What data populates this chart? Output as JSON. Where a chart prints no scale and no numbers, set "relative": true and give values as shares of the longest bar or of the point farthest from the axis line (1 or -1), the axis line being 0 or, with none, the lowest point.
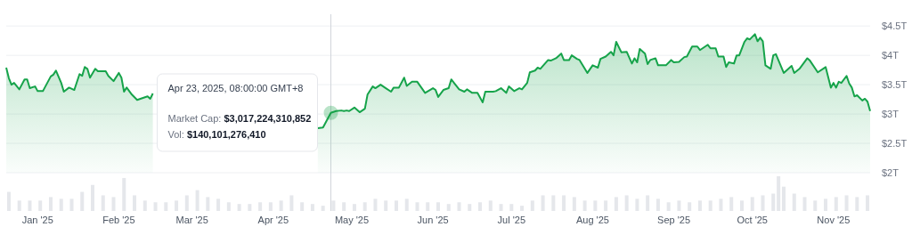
{
  "chart_data": [
    {
      "type": "area",
      "xlim": [
        "2024-12-20",
        "2025-11-15"
      ],
      "ylim": [
        2,
        4.7
      ],
      "yticks": [
        {
          "value": 2,
          "label": "$2T"
        },
        {
          "value": 2.5,
          "label": "$2.5T"
        },
        {
          "value": 3,
          "label": "$3T"
        },
        {
          "value": 3.5,
          "label": "$3.5T"
        },
        {
          "value": 4,
          "label": "$4T"
        },
        {
          "value": 4.5,
          "label": "$4.5T"
        }
      ],
      "grid": "y",
      "tick_labels": "y",
      "marker": "none",
      "line_style": "solid",
      "ref_lines": [
        {
          "axis": "x",
          "value": "2025-04-23",
          "color": "#d1d5db"
        }
      ],
      "annotations": [
        "Apr 23, 2025, 08:00:00 GMT+8",
        "Market Cap: $3,017,224,310,852",
        "Vol: $140,101,276,410"
      ],
      "series": [
        {
          "color": "#16a34a",
          "x": [
            "2024-12-20",
            "2024-12-21",
            "2024-12-22",
            "2024-12-23",
            "2024-12-25",
            "2024-12-27",
            "2024-12-28",
            "2024-12-29",
            "2024-12-31",
            "2025-01-01",
            "2025-01-03",
            "2025-01-06",
            "2025-01-07",
            "2025-01-08",
            "2025-01-10",
            "2025-01-11",
            "2025-01-13",
            "2025-01-15",
            "2025-01-17",
            "2025-01-18",
            "2025-01-19",
            "2025-01-20",
            "2025-01-21",
            "2025-01-23",
            "2025-01-24",
            "2025-01-27",
            "2025-01-28",
            "2025-01-30",
            "2025-02-01",
            "2025-02-02",
            "2025-02-03",
            "2025-02-04",
            "2025-02-06",
            "2025-02-08",
            "2025-02-10",
            "2025-02-12",
            "2025-02-13",
            "2025-02-14",
            "2025-03-15",
            "2025-04-18",
            "2025-04-20",
            "2025-04-23",
            "2025-04-25",
            "2025-04-27",
            "2025-04-28",
            "2025-04-29",
            "2025-04-30",
            "2025-05-02",
            "2025-05-04",
            "2025-05-06",
            "2025-05-07",
            "2025-05-09",
            "2025-05-10",
            "2025-05-12",
            "2025-05-14",
            "2025-05-16",
            "2025-05-17",
            "2025-05-19",
            "2025-05-21",
            "2025-05-22",
            "2025-05-24",
            "2025-05-26",
            "2025-05-29",
            "2025-06-01",
            "2025-06-02",
            "2025-06-03",
            "2025-06-05",
            "2025-06-07",
            "2025-06-08",
            "2025-06-11",
            "2025-06-13",
            "2025-06-14",
            "2025-06-16",
            "2025-06-18",
            "2025-06-20",
            "2025-06-21",
            "2025-06-24",
            "2025-06-25",
            "2025-06-27",
            "2025-06-29",
            "2025-06-30",
            "2025-07-02",
            "2025-07-04",
            "2025-07-05",
            "2025-07-07",
            "2025-07-08",
            "2025-07-10",
            "2025-07-11",
            "2025-07-12",
            "2025-07-15",
            "2025-07-16",
            "2025-07-18",
            "2025-07-20",
            "2025-07-21",
            "2025-07-23",
            "2025-07-24",
            "2025-07-26",
            "2025-07-27",
            "2025-07-30",
            "2025-08-01",
            "2025-08-03",
            "2025-08-04",
            "2025-08-06",
            "2025-08-08",
            "2025-08-09",
            "2025-08-10",
            "2025-08-12",
            "2025-08-14",
            "2025-08-16",
            "2025-08-17",
            "2025-08-18",
            "2025-08-19",
            "2025-08-21",
            "2025-08-22",
            "2025-08-23",
            "2025-08-25",
            "2025-08-26",
            "2025-08-29",
            "2025-08-31",
            "2025-09-01",
            "2025-09-03",
            "2025-09-05",
            "2025-09-06",
            "2025-09-08",
            "2025-09-10",
            "2025-09-11",
            "2025-09-14",
            "2025-09-15",
            "2025-09-17",
            "2025-09-18",
            "2025-09-20",
            "2025-09-21",
            "2025-09-22",
            "2025-09-24",
            "2025-09-25",
            "2025-09-26",
            "2025-09-28",
            "2025-09-29",
            "2025-09-30",
            "2025-10-02",
            "2025-10-03",
            "2025-10-04",
            "2025-10-05",
            "2025-10-06",
            "2025-10-08",
            "2025-10-09",
            "2025-10-10",
            "2025-10-13",
            "2025-10-16",
            "2025-10-17",
            "2025-10-19",
            "2025-10-22",
            "2025-10-23",
            "2025-10-26",
            "2025-10-29",
            "2025-10-31",
            "2025-11-01",
            "2025-11-02",
            "2025-11-03",
            "2025-11-04",
            "2025-11-06",
            "2025-11-07",
            "2025-11-08",
            "2025-11-09",
            "2025-11-10",
            "2025-11-12",
            "2025-11-13",
            "2025-11-14",
            "2025-11-15"
          ],
          "values": [
            3.79,
            3.61,
            3.5,
            3.53,
            3.42,
            3.59,
            3.59,
            3.44,
            3.47,
            3.39,
            3.39,
            3.64,
            3.67,
            3.74,
            3.53,
            3.38,
            3.45,
            3.41,
            3.68,
            3.65,
            3.8,
            3.77,
            3.62,
            3.77,
            3.73,
            3.73,
            3.65,
            3.56,
            3.7,
            3.62,
            3.38,
            3.45,
            3.33,
            3.24,
            3.27,
            3.3,
            3.26,
            3.35,
            null,
            2.76,
            2.77,
            3.02,
            3.05,
            3.06,
            3.05,
            3.06,
            3.05,
            3.11,
            3.03,
            3.09,
            3.33,
            3.47,
            3.44,
            3.5,
            3.44,
            3.38,
            3.45,
            3.45,
            3.62,
            3.48,
            3.55,
            3.55,
            3.36,
            3.44,
            3.41,
            3.29,
            3.41,
            3.44,
            3.59,
            3.42,
            3.38,
            3.42,
            3.36,
            3.36,
            3.2,
            3.38,
            3.38,
            3.39,
            3.44,
            3.36,
            3.47,
            3.39,
            3.44,
            3.42,
            3.53,
            3.71,
            3.74,
            3.79,
            3.77,
            3.92,
            3.91,
            3.95,
            4.03,
            3.92,
            3.92,
            4.0,
            3.94,
            3.92,
            3.7,
            3.83,
            3.79,
            3.94,
            3.98,
            4.06,
            4.0,
            4.23,
            4.05,
            4.06,
            3.86,
            3.95,
            3.88,
            4.11,
            4.03,
            3.85,
            3.92,
            3.95,
            3.83,
            3.83,
            3.92,
            3.88,
            3.89,
            3.97,
            3.98,
            4.15,
            4.15,
            4.09,
            4.18,
            4.12,
            4.12,
            3.98,
            3.98,
            3.8,
            3.88,
            3.86,
            4.0,
            4.0,
            4.23,
            4.29,
            4.27,
            4.36,
            4.24,
            4.3,
            4.24,
            3.83,
            3.77,
            4.0,
            4.02,
            3.7,
            3.82,
            3.7,
            3.77,
            3.95,
            3.91,
            3.71,
            3.8,
            3.45,
            3.53,
            3.45,
            3.55,
            3.53,
            3.65,
            3.52,
            3.45,
            3.3,
            3.32,
            3.23,
            3.26,
            3.21,
            3.05
          ]
        }
      ]
    },
    {
      "type": "bar",
      "relative": true,
      "xlim": [
        "2024-12-20",
        "2025-11-15"
      ],
      "tick_labels": "x",
      "xticks": [
        {
          "value": "2025-01-01",
          "label": "Jan '25"
        },
        {
          "value": "2025-02-01",
          "label": "Feb '25"
        },
        {
          "value": "2025-03-01",
          "label": "Mar '25"
        },
        {
          "value": "2025-04-01",
          "label": "Apr '25"
        },
        {
          "value": "2025-05-01",
          "label": "May '25"
        },
        {
          "value": "2025-06-01",
          "label": "Jun '25"
        },
        {
          "value": "2025-07-01",
          "label": "Jul '25"
        },
        {
          "value": "2025-08-01",
          "label": "Aug '25"
        },
        {
          "value": "2025-09-01",
          "label": "Sep '25"
        },
        {
          "value": "2025-10-01",
          "label": "Oct '25"
        },
        {
          "value": "2025-11-01",
          "label": "Nov '25"
        }
      ],
      "series": [
        {
          "color": "#e5e7eb",
          "x": [
            "2024-12-21",
            "2024-12-25",
            "2024-12-29",
            "2025-01-02",
            "2025-01-06",
            "2025-01-10",
            "2025-01-14",
            "2025-01-18",
            "2025-01-22",
            "2025-01-26",
            "2025-01-30",
            "2025-02-03",
            "2025-02-07",
            "2025-02-11",
            "2025-02-15",
            "2025-02-19",
            "2025-02-23",
            "2025-02-27",
            "2025-03-03",
            "2025-03-07",
            "2025-03-11",
            "2025-03-15",
            "2025-03-19",
            "2025-03-23",
            "2025-03-27",
            "2025-03-31",
            "2025-04-04",
            "2025-04-08",
            "2025-04-12",
            "2025-04-16",
            "2025-04-20",
            "2025-04-24",
            "2025-04-28",
            "2025-05-02",
            "2025-05-06",
            "2025-05-10",
            "2025-05-14",
            "2025-05-18",
            "2025-05-22",
            "2025-05-26",
            "2025-05-30",
            "2025-06-03",
            "2025-06-07",
            "2025-06-11",
            "2025-06-15",
            "2025-06-19",
            "2025-06-23",
            "2025-06-27",
            "2025-07-01",
            "2025-07-05",
            "2025-07-09",
            "2025-07-13",
            "2025-07-17",
            "2025-07-21",
            "2025-07-25",
            "2025-07-29",
            "2025-08-02",
            "2025-08-06",
            "2025-08-10",
            "2025-08-14",
            "2025-08-18",
            "2025-08-22",
            "2025-08-26",
            "2025-08-30",
            "2025-09-03",
            "2025-09-07",
            "2025-09-11",
            "2025-09-15",
            "2025-09-19",
            "2025-09-23",
            "2025-09-27",
            "2025-10-01",
            "2025-10-05",
            "2025-10-09",
            "2025-10-11",
            "2025-10-13",
            "2025-10-17",
            "2025-10-21",
            "2025-10-25",
            "2025-10-29",
            "2025-11-02",
            "2025-11-06",
            "2025-11-10",
            "2025-11-14"
          ],
          "values": [
            0.55,
            0.3,
            0.3,
            0.3,
            0.4,
            0.35,
            0.35,
            0.55,
            0.75,
            0.45,
            0.4,
            0.95,
            0.45,
            0.3,
            0.25,
            0.25,
            0.3,
            0.45,
            0.6,
            0.4,
            0.35,
            0.25,
            0.2,
            0.2,
            0.25,
            0.25,
            0.3,
            0.45,
            0.25,
            0.2,
            0.15,
            0.3,
            0.25,
            0.2,
            0.25,
            0.35,
            0.3,
            0.3,
            0.35,
            0.25,
            0.25,
            0.25,
            0.2,
            0.25,
            0.2,
            0.25,
            0.3,
            0.2,
            0.2,
            0.15,
            0.3,
            0.45,
            0.45,
            0.45,
            0.4,
            0.3,
            0.3,
            0.3,
            0.4,
            0.45,
            0.35,
            0.45,
            0.35,
            0.25,
            0.3,
            0.25,
            0.3,
            0.3,
            0.35,
            0.4,
            0.3,
            0.4,
            0.45,
            0.5,
            1,
            0.7,
            0.5,
            0.4,
            0.3,
            0.35,
            0.4,
            0.45,
            0.4,
            0.45
          ]
        }
      ]
    }
  ]
}
